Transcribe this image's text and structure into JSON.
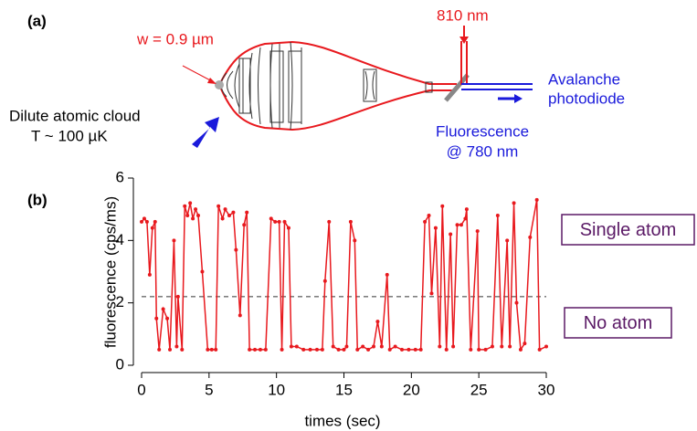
{
  "diagram": {
    "panel_label": "(a)",
    "waist": "w = 0.9 µm",
    "laser": "810 nm",
    "detector": [
      "Avalanche",
      "photodiode"
    ],
    "source": [
      "Dilute atomic cloud",
      "T  ~ 100 µK"
    ],
    "signal": [
      "Fluorescence",
      "@ 780 nm"
    ]
  },
  "chart_data": {
    "type": "line",
    "panel_label": "(b)",
    "xlabel": "times (sec)",
    "ylabel": "fluorescence (cps/ms)",
    "color": "#e8191e",
    "x": [
      0,
      0.2,
      0.4,
      0.6,
      0.8,
      1.0,
      1.1,
      1.3,
      1.6,
      1.9,
      2.1,
      2.4,
      2.6,
      2.7,
      3.0,
      3.2,
      3.4,
      3.6,
      3.8,
      4.0,
      4.2,
      4.5,
      4.9,
      5.2,
      5.5,
      5.7,
      6.0,
      6.2,
      6.5,
      6.8,
      7.0,
      7.3,
      7.6,
      7.8,
      8.0,
      8.4,
      8.8,
      9.2,
      9.6,
      9.9,
      10.2,
      10.4,
      10.6,
      10.9,
      11.1,
      11.5,
      12.0,
      12.5,
      13.0,
      13.4,
      13.6,
      13.9,
      14.2,
      14.6,
      15.0,
      15.2,
      15.5,
      15.8,
      16.0,
      16.4,
      16.8,
      17.2,
      17.5,
      17.8,
      18.2,
      18.4,
      18.8,
      19.3,
      19.8,
      20.3,
      20.7,
      21.0,
      21.3,
      21.5,
      21.8,
      22.1,
      22.3,
      22.6,
      22.9,
      23.1,
      23.4,
      23.7,
      24.0,
      24.1,
      24.4,
      24.9,
      25.0,
      25.5,
      26.0,
      26.4,
      26.7,
      27.1,
      27.3,
      27.6,
      27.8,
      28.1,
      28.4,
      28.8,
      29.3,
      29.5,
      30
    ],
    "values": [
      4.6,
      4.7,
      4.6,
      2.9,
      4.4,
      4.6,
      1.5,
      0.5,
      1.8,
      1.5,
      0.5,
      4.0,
      0.6,
      2.2,
      0.5,
      5.1,
      4.8,
      5.2,
      4.7,
      5.0,
      4.8,
      3.0,
      0.5,
      0.5,
      0.5,
      5.1,
      4.7,
      5.0,
      4.8,
      4.9,
      3.7,
      1.6,
      4.5,
      4.9,
      0.5,
      0.5,
      0.5,
      0.5,
      4.7,
      4.6,
      4.6,
      0.5,
      4.6,
      4.4,
      0.6,
      0.6,
      0.5,
      0.5,
      0.5,
      0.5,
      2.7,
      4.6,
      0.6,
      0.5,
      0.5,
      0.6,
      4.6,
      4.0,
      0.5,
      0.6,
      0.5,
      0.6,
      1.4,
      0.6,
      2.9,
      0.5,
      0.6,
      0.5,
      0.5,
      0.5,
      0.5,
      4.6,
      4.8,
      2.3,
      4.4,
      0.6,
      5.1,
      0.5,
      4.2,
      0.6,
      4.5,
      4.5,
      4.7,
      5.0,
      0.5,
      4.3,
      0.5,
      0.5,
      0.6,
      4.8,
      0.6,
      4.0,
      0.6,
      5.2,
      2.0,
      0.5,
      0.7,
      4.1,
      5.3,
      0.5,
      0.6
    ],
    "xlim": [
      0,
      30
    ],
    "ylim": [
      0,
      6
    ],
    "xticks": [
      0,
      5,
      10,
      15,
      20,
      25,
      30
    ],
    "yticks": [
      0,
      2,
      4,
      6
    ],
    "threshold": 2.2,
    "annotations": [
      "Single atom",
      "No atom"
    ]
  }
}
